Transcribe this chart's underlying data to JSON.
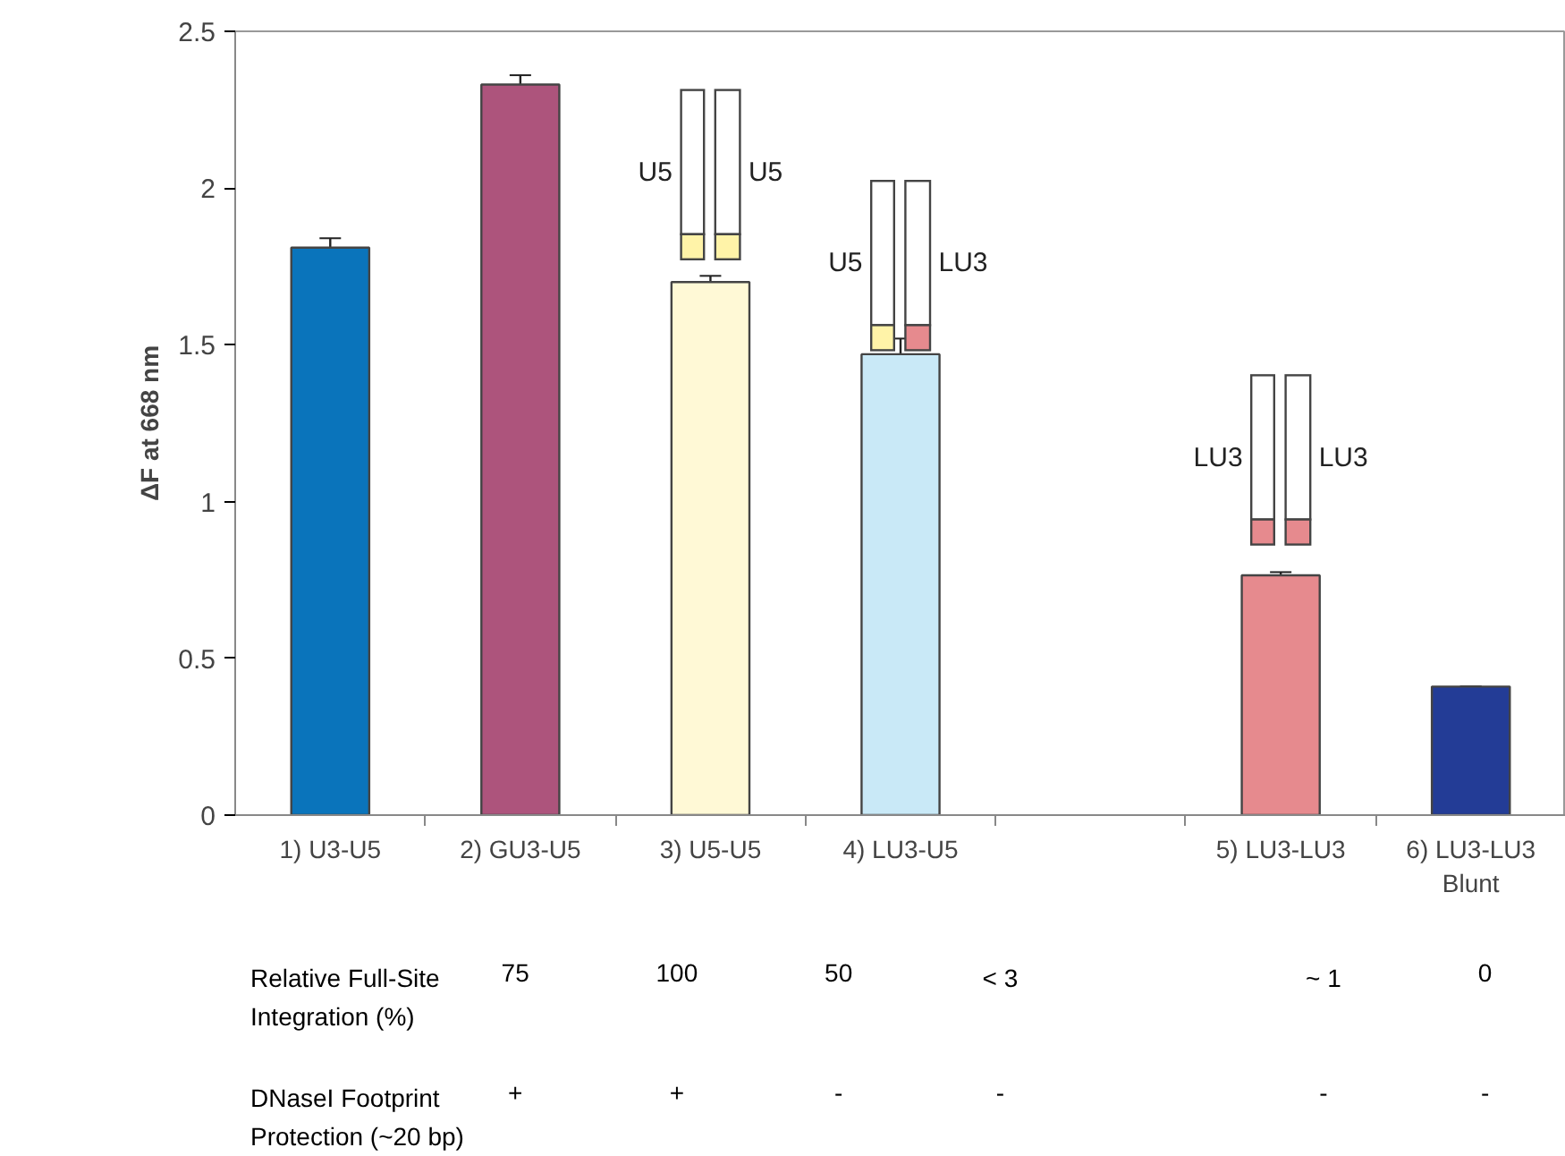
{
  "chart_data": {
    "type": "bar",
    "ylabel": "ΔF at 668 nm",
    "categories": [
      "1) U3-U5",
      "2) GU3-U5",
      "3) U5-U5",
      "4) LU3-U5",
      null,
      "5) LU3-LU3",
      "6) LU3-LU3\nBlunt"
    ],
    "values": [
      1.81,
      2.33,
      1.7,
      1.47,
      null,
      0.765,
      0.41
    ],
    "colors": [
      "#0a74bb",
      "#ad547c",
      "#fff9d6",
      "#c9e9f7",
      "#ffffff",
      "#e68a8e",
      "#233c96"
    ],
    "errors": [
      0.03,
      0.03,
      0.02,
      0.05,
      null,
      0.01,
      0
    ],
    "ylim": [
      0,
      2.5
    ],
    "yticks": [
      0,
      0.5,
      1,
      1.5,
      2,
      2.5
    ],
    "annotations": [
      "U5",
      "U5",
      "U5",
      "LU3",
      "LU3",
      "LU3",
      "Relative Full-Site\nIntegration (%)",
      "75",
      "100",
      "50",
      "< 3",
      "~ 1",
      "0",
      "DNaseI Footprint\nProtection (~20 bp)",
      "+",
      "+",
      "-",
      "-",
      "-",
      "-"
    ]
  }
}
